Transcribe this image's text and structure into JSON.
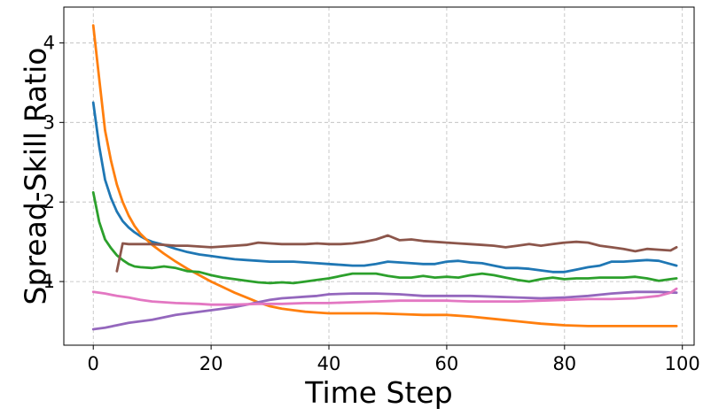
{
  "chart_data": {
    "type": "line",
    "title": "",
    "xlabel": "Time Step",
    "ylabel": "Spread-Skill Ratio",
    "xlim": [
      -5,
      102
    ],
    "ylim": [
      0.2,
      4.45
    ],
    "xticks": [
      0,
      20,
      40,
      60,
      80,
      100
    ],
    "yticks": [
      1,
      2,
      3,
      4
    ],
    "grid": true,
    "series": [
      {
        "color": "#1f77b4",
        "points": [
          [
            0,
            3.25
          ],
          [
            1,
            2.7
          ],
          [
            2,
            2.28
          ],
          [
            3,
            2.05
          ],
          [
            4,
            1.88
          ],
          [
            5,
            1.76
          ],
          [
            6,
            1.68
          ],
          [
            7,
            1.62
          ],
          [
            8,
            1.57
          ],
          [
            9,
            1.53
          ],
          [
            10,
            1.5
          ],
          [
            12,
            1.46
          ],
          [
            14,
            1.41
          ],
          [
            16,
            1.37
          ],
          [
            18,
            1.34
          ],
          [
            20,
            1.32
          ],
          [
            22,
            1.3
          ],
          [
            24,
            1.28
          ],
          [
            26,
            1.27
          ],
          [
            28,
            1.26
          ],
          [
            30,
            1.25
          ],
          [
            32,
            1.25
          ],
          [
            34,
            1.25
          ],
          [
            36,
            1.24
          ],
          [
            38,
            1.23
          ],
          [
            40,
            1.22
          ],
          [
            42,
            1.21
          ],
          [
            44,
            1.2
          ],
          [
            46,
            1.2
          ],
          [
            48,
            1.22
          ],
          [
            50,
            1.25
          ],
          [
            52,
            1.24
          ],
          [
            54,
            1.23
          ],
          [
            56,
            1.22
          ],
          [
            58,
            1.22
          ],
          [
            60,
            1.25
          ],
          [
            62,
            1.26
          ],
          [
            64,
            1.24
          ],
          [
            66,
            1.23
          ],
          [
            68,
            1.2
          ],
          [
            70,
            1.17
          ],
          [
            72,
            1.17
          ],
          [
            74,
            1.16
          ],
          [
            76,
            1.14
          ],
          [
            78,
            1.12
          ],
          [
            80,
            1.12
          ],
          [
            82,
            1.15
          ],
          [
            84,
            1.18
          ],
          [
            86,
            1.2
          ],
          [
            88,
            1.25
          ],
          [
            90,
            1.25
          ],
          [
            92,
            1.26
          ],
          [
            94,
            1.27
          ],
          [
            96,
            1.26
          ],
          [
            98,
            1.22
          ],
          [
            99,
            1.2
          ]
        ]
      },
      {
        "color": "#ff7f0e",
        "points": [
          [
            0,
            4.22
          ],
          [
            1,
            3.55
          ],
          [
            2,
            2.9
          ],
          [
            3,
            2.52
          ],
          [
            4,
            2.22
          ],
          [
            5,
            2.0
          ],
          [
            6,
            1.83
          ],
          [
            7,
            1.7
          ],
          [
            8,
            1.6
          ],
          [
            9,
            1.53
          ],
          [
            10,
            1.46
          ],
          [
            12,
            1.35
          ],
          [
            14,
            1.25
          ],
          [
            16,
            1.16
          ],
          [
            18,
            1.08
          ],
          [
            20,
            1.0
          ],
          [
            22,
            0.93
          ],
          [
            24,
            0.86
          ],
          [
            26,
            0.8
          ],
          [
            28,
            0.74
          ],
          [
            30,
            0.69
          ],
          [
            32,
            0.66
          ],
          [
            34,
            0.64
          ],
          [
            36,
            0.62
          ],
          [
            38,
            0.61
          ],
          [
            40,
            0.6
          ],
          [
            44,
            0.6
          ],
          [
            48,
            0.6
          ],
          [
            52,
            0.59
          ],
          [
            56,
            0.58
          ],
          [
            60,
            0.58
          ],
          [
            64,
            0.56
          ],
          [
            68,
            0.53
          ],
          [
            72,
            0.5
          ],
          [
            76,
            0.47
          ],
          [
            80,
            0.45
          ],
          [
            84,
            0.44
          ],
          [
            88,
            0.44
          ],
          [
            92,
            0.44
          ],
          [
            96,
            0.44
          ],
          [
            99,
            0.44
          ]
        ]
      },
      {
        "color": "#2ca02c",
        "points": [
          [
            0,
            2.12
          ],
          [
            1,
            1.75
          ],
          [
            2,
            1.53
          ],
          [
            3,
            1.42
          ],
          [
            4,
            1.33
          ],
          [
            5,
            1.27
          ],
          [
            6,
            1.22
          ],
          [
            7,
            1.19
          ],
          [
            8,
            1.18
          ],
          [
            10,
            1.17
          ],
          [
            12,
            1.19
          ],
          [
            14,
            1.17
          ],
          [
            16,
            1.13
          ],
          [
            18,
            1.12
          ],
          [
            20,
            1.08
          ],
          [
            22,
            1.05
          ],
          [
            24,
            1.03
          ],
          [
            26,
            1.01
          ],
          [
            28,
            0.99
          ],
          [
            30,
            0.98
          ],
          [
            32,
            0.99
          ],
          [
            34,
            0.98
          ],
          [
            36,
            1.0
          ],
          [
            38,
            1.02
          ],
          [
            40,
            1.04
          ],
          [
            42,
            1.07
          ],
          [
            44,
            1.1
          ],
          [
            46,
            1.1
          ],
          [
            48,
            1.1
          ],
          [
            50,
            1.07
          ],
          [
            52,
            1.05
          ],
          [
            54,
            1.05
          ],
          [
            56,
            1.07
          ],
          [
            58,
            1.05
          ],
          [
            60,
            1.06
          ],
          [
            62,
            1.05
          ],
          [
            64,
            1.08
          ],
          [
            66,
            1.1
          ],
          [
            68,
            1.08
          ],
          [
            70,
            1.05
          ],
          [
            72,
            1.02
          ],
          [
            74,
            1.0
          ],
          [
            76,
            1.03
          ],
          [
            78,
            1.05
          ],
          [
            80,
            1.03
          ],
          [
            82,
            1.04
          ],
          [
            84,
            1.04
          ],
          [
            86,
            1.05
          ],
          [
            88,
            1.05
          ],
          [
            90,
            1.05
          ],
          [
            92,
            1.06
          ],
          [
            94,
            1.04
          ],
          [
            96,
            1.01
          ],
          [
            98,
            1.03
          ],
          [
            99,
            1.04
          ]
        ]
      },
      {
        "color": "#8c564b",
        "points": [
          [
            4,
            1.13
          ],
          [
            5,
            1.48
          ],
          [
            6,
            1.47
          ],
          [
            8,
            1.47
          ],
          [
            10,
            1.47
          ],
          [
            12,
            1.46
          ],
          [
            14,
            1.45
          ],
          [
            16,
            1.45
          ],
          [
            18,
            1.44
          ],
          [
            20,
            1.43
          ],
          [
            22,
            1.44
          ],
          [
            24,
            1.45
          ],
          [
            26,
            1.46
          ],
          [
            28,
            1.49
          ],
          [
            30,
            1.48
          ],
          [
            32,
            1.47
          ],
          [
            34,
            1.47
          ],
          [
            36,
            1.47
          ],
          [
            38,
            1.48
          ],
          [
            40,
            1.47
          ],
          [
            42,
            1.47
          ],
          [
            44,
            1.48
          ],
          [
            46,
            1.5
          ],
          [
            48,
            1.53
          ],
          [
            50,
            1.58
          ],
          [
            52,
            1.52
          ],
          [
            54,
            1.53
          ],
          [
            56,
            1.51
          ],
          [
            58,
            1.5
          ],
          [
            60,
            1.49
          ],
          [
            62,
            1.48
          ],
          [
            64,
            1.47
          ],
          [
            66,
            1.46
          ],
          [
            68,
            1.45
          ],
          [
            70,
            1.43
          ],
          [
            72,
            1.45
          ],
          [
            74,
            1.47
          ],
          [
            76,
            1.45
          ],
          [
            78,
            1.47
          ],
          [
            80,
            1.49
          ],
          [
            82,
            1.5
          ],
          [
            84,
            1.49
          ],
          [
            86,
            1.45
          ],
          [
            88,
            1.43
          ],
          [
            90,
            1.41
          ],
          [
            92,
            1.38
          ],
          [
            94,
            1.41
          ],
          [
            96,
            1.4
          ],
          [
            98,
            1.39
          ],
          [
            99,
            1.43
          ]
        ]
      },
      {
        "color": "#9467bd",
        "points": [
          [
            0,
            0.4
          ],
          [
            2,
            0.42
          ],
          [
            4,
            0.45
          ],
          [
            6,
            0.48
          ],
          [
            8,
            0.5
          ],
          [
            10,
            0.52
          ],
          [
            12,
            0.55
          ],
          [
            14,
            0.58
          ],
          [
            16,
            0.6
          ],
          [
            18,
            0.62
          ],
          [
            20,
            0.64
          ],
          [
            22,
            0.66
          ],
          [
            24,
            0.68
          ],
          [
            26,
            0.71
          ],
          [
            28,
            0.74
          ],
          [
            30,
            0.77
          ],
          [
            32,
            0.79
          ],
          [
            34,
            0.8
          ],
          [
            36,
            0.81
          ],
          [
            38,
            0.82
          ],
          [
            40,
            0.84
          ],
          [
            44,
            0.85
          ],
          [
            48,
            0.85
          ],
          [
            52,
            0.84
          ],
          [
            56,
            0.82
          ],
          [
            60,
            0.82
          ],
          [
            64,
            0.82
          ],
          [
            68,
            0.81
          ],
          [
            72,
            0.8
          ],
          [
            76,
            0.79
          ],
          [
            80,
            0.8
          ],
          [
            84,
            0.82
          ],
          [
            88,
            0.85
          ],
          [
            92,
            0.87
          ],
          [
            96,
            0.87
          ],
          [
            99,
            0.86
          ]
        ]
      },
      {
        "color": "#e377c2",
        "points": [
          [
            0,
            0.87
          ],
          [
            2,
            0.85
          ],
          [
            4,
            0.82
          ],
          [
            6,
            0.8
          ],
          [
            8,
            0.77
          ],
          [
            10,
            0.75
          ],
          [
            14,
            0.73
          ],
          [
            18,
            0.72
          ],
          [
            20,
            0.71
          ],
          [
            24,
            0.71
          ],
          [
            28,
            0.72
          ],
          [
            32,
            0.72
          ],
          [
            36,
            0.73
          ],
          [
            40,
            0.73
          ],
          [
            44,
            0.74
          ],
          [
            48,
            0.75
          ],
          [
            52,
            0.76
          ],
          [
            56,
            0.76
          ],
          [
            60,
            0.76
          ],
          [
            64,
            0.75
          ],
          [
            68,
            0.75
          ],
          [
            72,
            0.75
          ],
          [
            76,
            0.76
          ],
          [
            80,
            0.77
          ],
          [
            84,
            0.78
          ],
          [
            88,
            0.78
          ],
          [
            92,
            0.79
          ],
          [
            96,
            0.82
          ],
          [
            98,
            0.86
          ],
          [
            99,
            0.91
          ]
        ]
      }
    ]
  }
}
